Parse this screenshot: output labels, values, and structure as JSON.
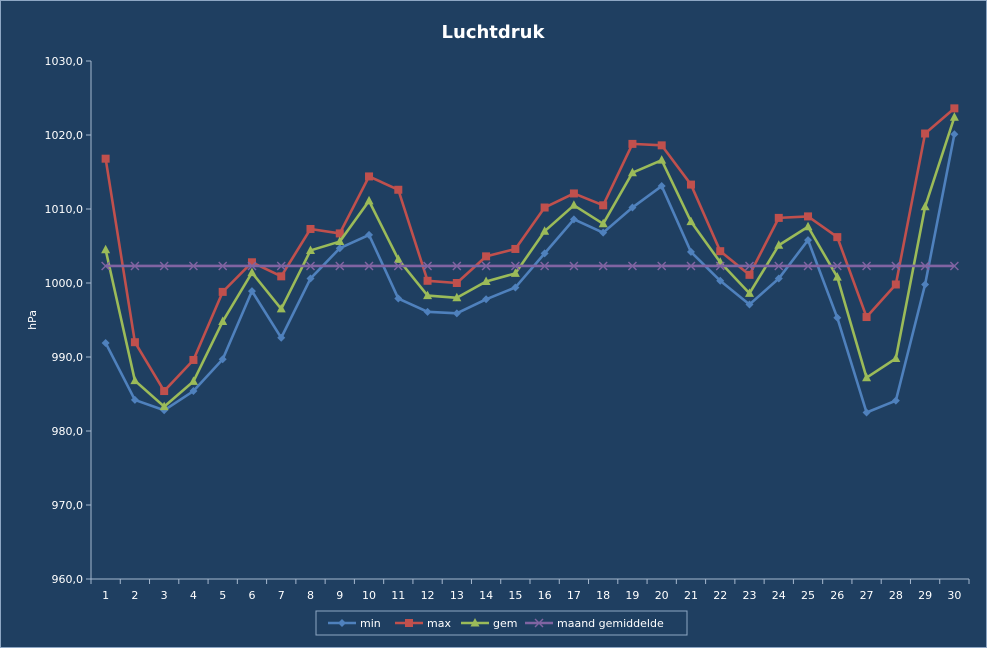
{
  "chart_data": {
    "type": "line",
    "title": "Luchtdruk",
    "ylabel": "hPa",
    "xlabel": "",
    "ylim": [
      960,
      1030
    ],
    "ytick_step": 10,
    "ytick_labels": [
      "960,0",
      "970,0",
      "980,0",
      "990,0",
      "1000,0",
      "1010,0",
      "1020,0",
      "1030,0"
    ],
    "grid": false,
    "legend_position": "bottom",
    "background_color": "#1F3F61",
    "x": [
      "1",
      "2",
      "3",
      "4",
      "5",
      "6",
      "7",
      "8",
      "9",
      "10",
      "11",
      "12",
      "13",
      "14",
      "15",
      "16",
      "17",
      "18",
      "19",
      "20",
      "21",
      "22",
      "23",
      "24",
      "25",
      "26",
      "27",
      "28",
      "29",
      "30"
    ],
    "series": [
      {
        "name": "min",
        "color": "#4F81BD",
        "marker": "diamond",
        "values": [
          991.9,
          984.2,
          982.8,
          985.4,
          989.7,
          998.9,
          992.6,
          1000.6,
          1004.7,
          1006.5,
          997.9,
          996.1,
          995.9,
          997.8,
          999.4,
          1004.0,
          1008.6,
          1006.8,
          1010.2,
          1013.1,
          1004.2,
          1000.3,
          997.1,
          1000.6,
          1005.8,
          995.3,
          982.5,
          984.1,
          999.8,
          1020.1
        ]
      },
      {
        "name": "max",
        "color": "#C0504D",
        "marker": "square",
        "values": [
          1016.8,
          992.0,
          985.4,
          989.6,
          998.8,
          1002.8,
          1000.9,
          1007.3,
          1006.7,
          1014.4,
          1012.6,
          1000.3,
          1000.0,
          1003.6,
          1004.6,
          1010.2,
          1012.1,
          1010.5,
          1018.8,
          1018.6,
          1013.3,
          1004.3,
          1001.1,
          1008.8,
          1009.0,
          1006.2,
          995.4,
          999.8,
          1020.2,
          1023.6
        ]
      },
      {
        "name": "gem",
        "color": "#9BBB59",
        "marker": "triangle",
        "values": [
          1004.5,
          986.8,
          983.3,
          986.7,
          994.8,
          1001.4,
          996.5,
          1004.4,
          1005.6,
          1011.1,
          1003.2,
          998.3,
          998.0,
          1000.2,
          1001.3,
          1007.0,
          1010.5,
          1008.0,
          1014.9,
          1016.6,
          1008.3,
          1002.8,
          998.6,
          1005.1,
          1007.6,
          1000.8,
          987.2,
          989.8,
          1010.3,
          1022.4
        ]
      },
      {
        "name": "maand gemiddelde",
        "color": "#8064A2",
        "marker": "x",
        "values": [
          1002.3,
          1002.3,
          1002.3,
          1002.3,
          1002.3,
          1002.3,
          1002.3,
          1002.3,
          1002.3,
          1002.3,
          1002.3,
          1002.3,
          1002.3,
          1002.3,
          1002.3,
          1002.3,
          1002.3,
          1002.3,
          1002.3,
          1002.3,
          1002.3,
          1002.3,
          1002.3,
          1002.3,
          1002.3,
          1002.3,
          1002.3,
          1002.3,
          1002.3,
          1002.3
        ]
      }
    ]
  }
}
